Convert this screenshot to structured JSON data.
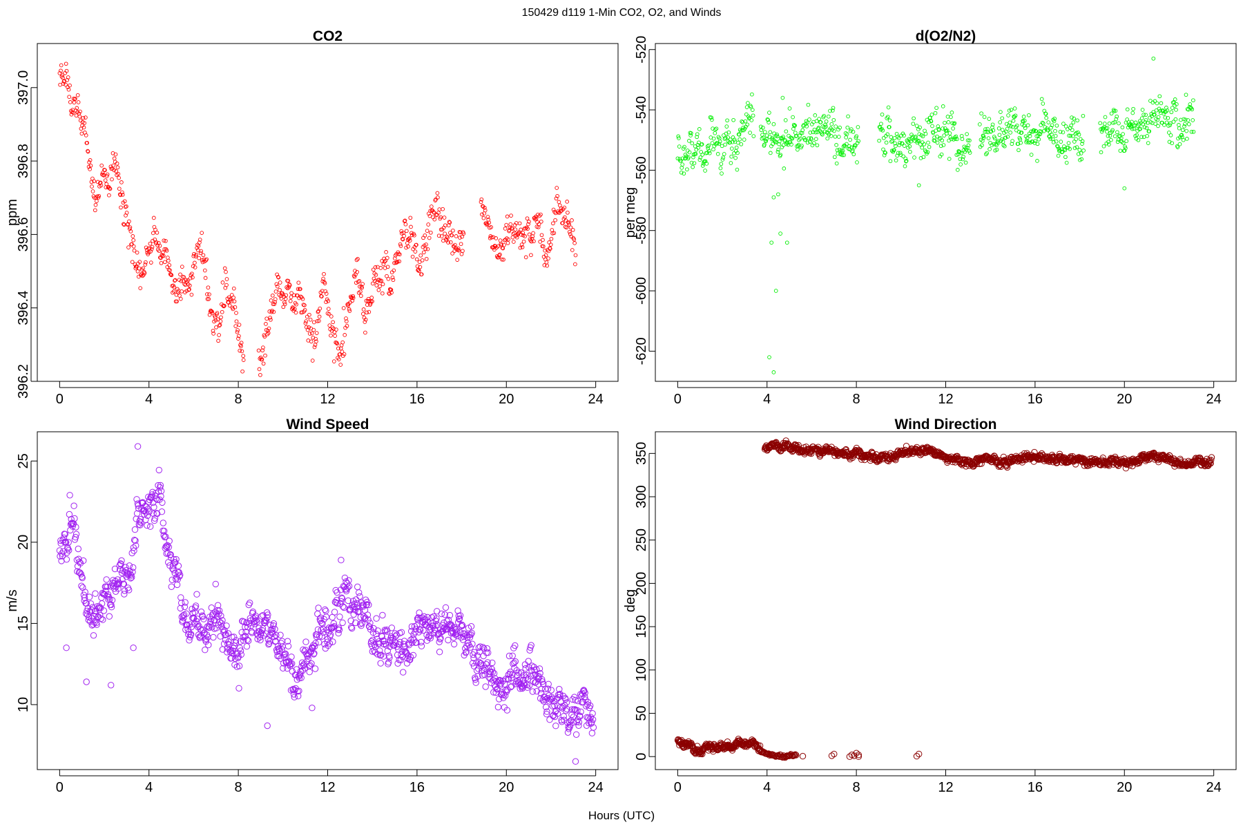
{
  "figure": {
    "title": "150429   d119   1-Min CO2, O2, and Winds",
    "xlabel": "Hours (UTC)"
  },
  "chart_data": [
    {
      "type": "scatter",
      "title": "CO2",
      "xlabel": "",
      "ylabel": "ppm",
      "xlim": [
        -1,
        25
      ],
      "ylim": [
        396.2,
        397.12
      ],
      "xticks": [
        0,
        4,
        8,
        12,
        16,
        20,
        24
      ],
      "yticks": [
        396.2,
        396.4,
        396.6,
        396.8,
        397.0
      ],
      "ytick_labels": [
        "396.2",
        "396.4",
        "396.6",
        "396.8",
        "397.0"
      ],
      "color": "#ff0000",
      "marker": "open-circle-small",
      "x_range": [
        0.0,
        23.1
      ],
      "profile": [
        [
          0.0,
          397.03
        ],
        [
          0.3,
          397.02
        ],
        [
          0.6,
          396.98
        ],
        [
          0.9,
          396.92
        ],
        [
          1.2,
          396.88
        ],
        [
          1.5,
          396.75
        ],
        [
          1.8,
          396.74
        ],
        [
          2.2,
          396.76
        ],
        [
          2.5,
          396.78
        ],
        [
          2.8,
          396.74
        ],
        [
          3.1,
          396.62
        ],
        [
          3.5,
          396.55
        ],
        [
          3.9,
          396.52
        ],
        [
          4.2,
          396.62
        ],
        [
          4.5,
          396.58
        ],
        [
          4.8,
          396.52
        ],
        [
          5.1,
          396.43
        ],
        [
          5.5,
          396.48
        ],
        [
          5.8,
          396.5
        ],
        [
          6.2,
          396.55
        ],
        [
          6.5,
          396.52
        ],
        [
          6.8,
          396.38
        ],
        [
          7.1,
          396.32
        ],
        [
          7.4,
          396.5
        ],
        [
          7.7,
          396.4
        ],
        [
          8.0,
          396.33
        ],
        [
          8.2,
          396.3
        ],
        [
          9.0,
          396.28
        ],
        [
          9.4,
          396.38
        ],
        [
          9.8,
          396.45
        ],
        [
          10.2,
          396.47
        ],
        [
          10.6,
          396.42
        ],
        [
          11.0,
          396.38
        ],
        [
          11.4,
          396.32
        ],
        [
          11.8,
          396.48
        ],
        [
          12.1,
          396.38
        ],
        [
          12.5,
          396.3
        ],
        [
          12.9,
          396.4
        ],
        [
          13.3,
          396.5
        ],
        [
          13.7,
          396.38
        ],
        [
          14.1,
          396.5
        ],
        [
          14.5,
          396.47
        ],
        [
          14.9,
          396.5
        ],
        [
          15.3,
          396.58
        ],
        [
          15.7,
          396.62
        ],
        [
          16.1,
          396.52
        ],
        [
          16.5,
          396.6
        ],
        [
          16.9,
          396.67
        ],
        [
          17.3,
          396.63
        ],
        [
          17.7,
          396.6
        ],
        [
          18.0,
          396.57
        ],
        [
          18.9,
          396.66
        ],
        [
          19.3,
          396.58
        ],
        [
          19.6,
          396.52
        ],
        [
          20.0,
          396.58
        ],
        [
          20.4,
          396.6
        ],
        [
          20.8,
          396.58
        ],
        [
          21.3,
          396.62
        ],
        [
          21.7,
          396.56
        ],
        [
          22.1,
          396.6
        ],
        [
          22.5,
          396.7
        ],
        [
          22.8,
          396.66
        ],
        [
          23.1,
          396.55
        ]
      ],
      "noise": 0.035,
      "gaps": [
        [
          8.25,
          8.9
        ],
        [
          18.1,
          18.85
        ]
      ],
      "n_points": 960
    },
    {
      "type": "scatter",
      "title": "d(O2/N2)",
      "xlabel": "",
      "ylabel": "per meg",
      "xlim": [
        -1,
        25
      ],
      "ylim": [
        -630,
        -518
      ],
      "xticks": [
        0,
        4,
        8,
        12,
        16,
        20,
        24
      ],
      "yticks": [
        -620,
        -600,
        -580,
        -560,
        -540,
        -520
      ],
      "ytick_labels": [
        "-620",
        "-600",
        "-580",
        "-560",
        "-540",
        "-520"
      ],
      "color": "#00ee00",
      "marker": "open-circle-small",
      "x_range": [
        0.0,
        23.1
      ],
      "profile": [
        [
          0.0,
          -558
        ],
        [
          0.8,
          -556
        ],
        [
          1.5,
          -550
        ],
        [
          2.5,
          -548
        ],
        [
          3.2,
          -547
        ],
        [
          4.0,
          -550
        ],
        [
          5.0,
          -549
        ],
        [
          6.0,
          -548
        ],
        [
          7.0,
          -548
        ],
        [
          8.0,
          -548
        ],
        [
          9.0,
          -549
        ],
        [
          10.0,
          -550
        ],
        [
          11.0,
          -550
        ],
        [
          12.0,
          -549
        ],
        [
          13.0,
          -549
        ],
        [
          14.0,
          -548
        ],
        [
          15.0,
          -547
        ],
        [
          16.0,
          -547
        ],
        [
          17.0,
          -547
        ],
        [
          18.0,
          -548
        ],
        [
          19.0,
          -547
        ],
        [
          20.0,
          -548
        ],
        [
          21.0,
          -546
        ],
        [
          22.0,
          -546
        ],
        [
          23.1,
          -545
        ]
      ],
      "noise": 5,
      "gaps": [
        [
          3.4,
          3.7
        ],
        [
          8.1,
          9.0
        ],
        [
          13.1,
          13.5
        ],
        [
          18.2,
          18.9
        ]
      ],
      "outliers": [
        [
          4.3,
          -569
        ],
        [
          4.5,
          -568
        ],
        [
          4.2,
          -584
        ],
        [
          4.6,
          -581
        ],
        [
          4.9,
          -584
        ],
        [
          4.1,
          -622
        ],
        [
          4.3,
          -627
        ],
        [
          4.4,
          -600
        ],
        [
          4.7,
          -536
        ],
        [
          21.3,
          -523
        ],
        [
          20.0,
          -566
        ],
        [
          10.8,
          -565
        ]
      ],
      "n_points": 1000
    },
    {
      "type": "scatter",
      "title": "Wind Speed",
      "xlabel": "",
      "ylabel": "m/s",
      "xlim": [
        -1,
        25
      ],
      "ylim": [
        6.0,
        26.8
      ],
      "xticks": [
        0,
        4,
        8,
        12,
        16,
        20,
        24
      ],
      "yticks": [
        10,
        15,
        20,
        25
      ],
      "ytick_labels": [
        "10",
        "15",
        "20",
        "25"
      ],
      "color": "#a020f0",
      "marker": "open-circle-large",
      "x_range": [
        0.0,
        23.9
      ],
      "profile": [
        [
          0.0,
          19.2
        ],
        [
          0.5,
          20.8
        ],
        [
          0.9,
          18.5
        ],
        [
          1.3,
          15.5
        ],
        [
          1.8,
          15.3
        ],
        [
          2.3,
          17.0
        ],
        [
          2.8,
          18.0
        ],
        [
          3.2,
          17.2
        ],
        [
          3.6,
          22.0
        ],
        [
          4.0,
          22.3
        ],
        [
          4.4,
          22.0
        ],
        [
          4.8,
          19.5
        ],
        [
          5.2,
          18.2
        ],
        [
          5.6,
          16.0
        ],
        [
          6.0,
          15.0
        ],
        [
          6.5,
          14.0
        ],
        [
          7.0,
          15.8
        ],
        [
          7.5,
          14.0
        ],
        [
          8.0,
          13.5
        ],
        [
          8.5,
          14.5
        ],
        [
          9.0,
          15.0
        ],
        [
          9.5,
          14.5
        ],
        [
          10.0,
          13.0
        ],
        [
          10.5,
          11.8
        ],
        [
          11.0,
          12.5
        ],
        [
          11.5,
          13.0
        ],
        [
          12.0,
          14.5
        ],
        [
          12.5,
          15.5
        ],
        [
          13.0,
          16.0
        ],
        [
          13.5,
          15.5
        ],
        [
          14.0,
          14.5
        ],
        [
          14.5,
          13.5
        ],
        [
          15.0,
          13.2
        ],
        [
          15.5,
          13.8
        ],
        [
          16.0,
          14.2
        ],
        [
          16.5,
          14.0
        ],
        [
          17.0,
          14.5
        ],
        [
          17.5,
          15.0
        ],
        [
          18.0,
          14.0
        ],
        [
          18.5,
          13.5
        ],
        [
          19.0,
          12.5
        ],
        [
          19.5,
          12.0
        ],
        [
          20.0,
          11.5
        ],
        [
          20.5,
          12.0
        ],
        [
          21.0,
          11.2
        ],
        [
          21.5,
          10.8
        ],
        [
          22.0,
          10.5
        ],
        [
          22.5,
          10.0
        ],
        [
          23.0,
          9.3
        ],
        [
          23.5,
          9.0
        ],
        [
          23.9,
          9.2
        ]
      ],
      "noise": 0.9,
      "outliers": [
        [
          0.3,
          13.5
        ],
        [
          1.2,
          11.4
        ],
        [
          2.3,
          11.2
        ],
        [
          3.3,
          13.5
        ],
        [
          3.5,
          25.9
        ],
        [
          9.3,
          8.7
        ],
        [
          11.3,
          9.8
        ],
        [
          23.1,
          6.5
        ],
        [
          12.6,
          18.9
        ]
      ],
      "n_points": 1150
    },
    {
      "type": "scatter",
      "title": "Wind Direction",
      "xlabel": "",
      "ylabel": "deg",
      "xlim": [
        -1,
        25
      ],
      "ylim": [
        -15,
        375
      ],
      "xticks": [
        0,
        4,
        8,
        12,
        16,
        20,
        24
      ],
      "yticks": [
        0,
        50,
        100,
        150,
        200,
        250,
        300,
        350
      ],
      "ytick_labels": [
        "0",
        "50",
        "100",
        "150",
        "200",
        "250",
        "300",
        "350"
      ],
      "color": "#8b0000",
      "marker": "open-circle-large",
      "segments": [
        {
          "x_range": [
            0.0,
            3.7
          ],
          "profile": [
            [
              0.0,
              18
            ],
            [
              0.4,
              14
            ],
            [
              0.8,
              10
            ],
            [
              1.2,
              9
            ],
            [
              1.6,
              11
            ],
            [
              2.0,
              12
            ],
            [
              2.4,
              13
            ],
            [
              2.8,
              17
            ],
            [
              3.2,
              15
            ],
            [
              3.7,
              8
            ]
          ],
          "noise": 3,
          "n_points": 220
        },
        {
          "x_range": [
            3.7,
            5.3
          ],
          "profile": [
            [
              3.7,
              5
            ],
            [
              4.3,
              2
            ],
            [
              5.3,
              1
            ]
          ],
          "noise": 1.2,
          "n_points": 50
        },
        {
          "x_range": [
            3.9,
            23.9
          ],
          "profile": [
            [
              3.9,
              358
            ],
            [
              4.5,
              357
            ],
            [
              5.0,
              356
            ],
            [
              5.5,
              355
            ],
            [
              6.0,
              354
            ],
            [
              6.5,
              352
            ],
            [
              7.0,
              350
            ],
            [
              7.5,
              348
            ],
            [
              8.0,
              355
            ],
            [
              8.5,
              345
            ],
            [
              9.0,
              344
            ],
            [
              9.5,
              346
            ],
            [
              10.0,
              348
            ],
            [
              10.5,
              352
            ],
            [
              11.0,
              356
            ],
            [
              11.5,
              352
            ],
            [
              12.0,
              348
            ],
            [
              12.5,
              344
            ],
            [
              13.0,
              342
            ],
            [
              14.0,
              341
            ],
            [
              15.0,
              342
            ],
            [
              16.0,
              344
            ],
            [
              17.0,
              342
            ],
            [
              18.0,
              341
            ],
            [
              19.0,
              341
            ],
            [
              20.0,
              338
            ],
            [
              20.5,
              340
            ],
            [
              21.0,
              345
            ],
            [
              21.5,
              346
            ],
            [
              22.0,
              341
            ],
            [
              22.5,
              340
            ],
            [
              23.0,
              339
            ],
            [
              23.9,
              341
            ]
          ],
          "noise": 3.2,
          "n_points": 1080
        }
      ],
      "outliers": [
        [
          5.6,
          0.5
        ],
        [
          6.9,
          1
        ],
        [
          7.0,
          3
        ],
        [
          7.7,
          0
        ],
        [
          7.8,
          2
        ],
        [
          7.9,
          1
        ],
        [
          8.0,
          4
        ],
        [
          8.1,
          2
        ],
        [
          8.1,
          0
        ],
        [
          10.7,
          0.5
        ],
        [
          10.8,
          3
        ]
      ]
    }
  ]
}
